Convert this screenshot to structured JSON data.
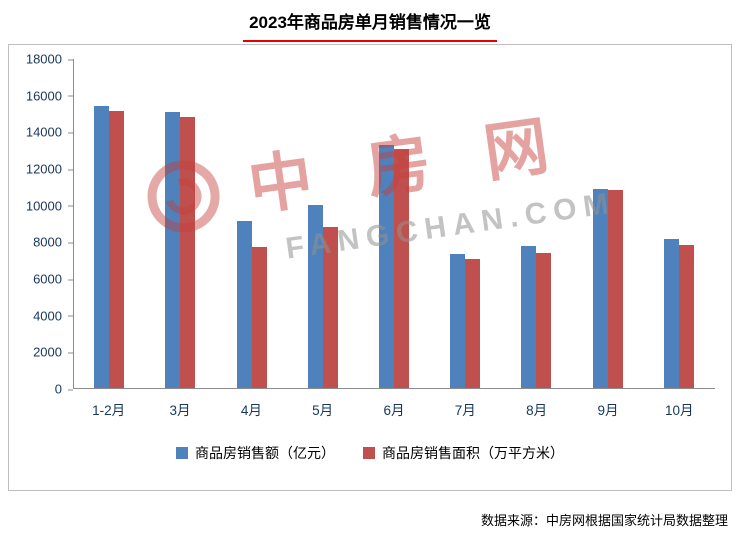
{
  "title": "2023年商品房单月销售情况一览",
  "source": "数据来源：中房网根据国家统计局数据整理",
  "watermark": {
    "logo_icon": "fangchan-circle-logo",
    "logo_text": "中房网",
    "domain": "FANGCHAN.COM"
  },
  "colors": {
    "series_blue": "#4f81bd",
    "series_red": "#c0504d",
    "axis_text": "#17375e",
    "title_underline": "#e60000",
    "chart_border": "#bfbfbf"
  },
  "chart_data": {
    "type": "bar",
    "title": "2023年商品房单月销售情况一览",
    "categories": [
      "1-2月",
      "3月",
      "4月",
      "5月",
      "6月",
      "7月",
      "8月",
      "9月",
      "10月"
    ],
    "series": [
      {
        "name": "商品房销售额（亿元）",
        "color": "#4f81bd",
        "values": [
          15449,
          15096,
          9154,
          10005,
          13273,
          7358,
          7745,
          10907,
          8148
        ]
      },
      {
        "name": "商品房销售面积（万平方米）",
        "color": "#c0504d",
        "values": [
          15133,
          14813,
          7690,
          8805,
          13090,
          7048,
          7386,
          10818,
          7823
        ]
      }
    ],
    "xlabel": "",
    "ylabel": "",
    "ylim": [
      0,
      18000
    ],
    "ytick_step": 2000,
    "grid": false,
    "legend_position": "bottom"
  }
}
